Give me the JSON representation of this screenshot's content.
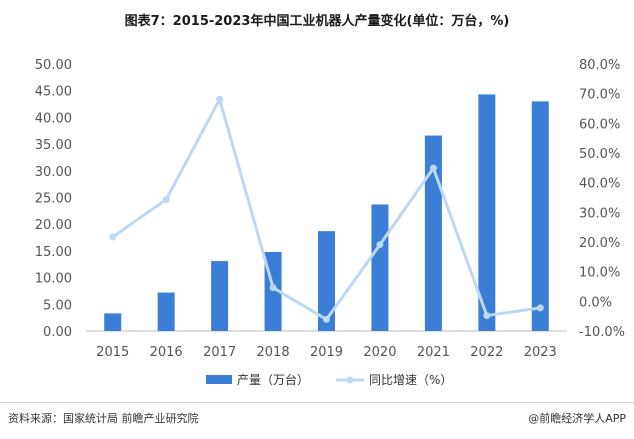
{
  "header": {
    "title": "图表7：2015-2023年中国工业机器人产量变化(单位：万台，%)"
  },
  "chart_data": {
    "type": "bar",
    "categories": [
      "2015",
      "2016",
      "2017",
      "2018",
      "2019",
      "2020",
      "2021",
      "2022",
      "2023"
    ],
    "series": [
      {
        "name": "产量（万台）",
        "type": "bar",
        "axis": "left",
        "values": [
          3.3,
          7.2,
          13.1,
          14.8,
          18.7,
          23.7,
          36.6,
          44.3,
          43.0
        ]
      },
      {
        "name": "同比增速（%）",
        "type": "line",
        "axis": "right",
        "values": [
          21.7,
          34.3,
          68.1,
          4.6,
          -6.1,
          19.1,
          44.9,
          -4.8,
          -2.2
        ]
      }
    ],
    "y_left": {
      "min": 0,
      "max": 50,
      "step": 5,
      "ticks": [
        "0.00",
        "5.00",
        "10.00",
        "15.00",
        "20.00",
        "25.00",
        "30.00",
        "35.00",
        "40.00",
        "45.00",
        "50.00"
      ]
    },
    "y_right": {
      "min": -10,
      "max": 80,
      "step": 10,
      "ticks": [
        "-10.0%",
        "0.0%",
        "10.0%",
        "20.0%",
        "30.0%",
        "40.0%",
        "50.0%",
        "60.0%",
        "70.0%",
        "80.0%"
      ]
    },
    "legend_position": "bottom-center",
    "grid": false
  },
  "footer": {
    "source": "资料来源：国家统计局 前瞻产业研究院",
    "brand": "@前瞻经济学人APP"
  },
  "colors": {
    "bar": "#3a7fd5",
    "line": "#bcd8f2",
    "text": "#555555",
    "axis": "#bfbfbf"
  }
}
